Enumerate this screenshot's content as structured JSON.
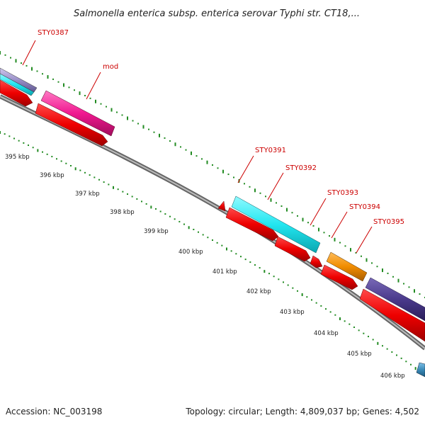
{
  "header": {
    "title": "Salmonella enterica subsp. enterica serovar Typhi str. CT18,..."
  },
  "footer": {
    "accession": "Accession: NC_003198",
    "summary": "Topology: circular; Length: 4,809,037 bp; Genes: 4,502"
  },
  "scale": {
    "tick_labels": [
      "395 kbp",
      "396 kbp",
      "397 kbp",
      "398 kbp",
      "399 kbp",
      "400 kbp",
      "401 kbp",
      "402 kbp",
      "403 kbp",
      "404 kbp",
      "405 kbp",
      "406 kbp"
    ]
  },
  "gene_labels": [
    "STY0387",
    "mod",
    "STY0391",
    "STY0392",
    "STY0393",
    "STY0394",
    "STY0395"
  ],
  "colors": {
    "label_red": "#cc0000",
    "strand_red": "#ee0000",
    "cyan": "#22e6f0",
    "magenta": "#f01890",
    "orange": "#f08c00",
    "purple": "#4a3a8c",
    "lavender": "#9a90c8",
    "teal_blue": "#3a8ab8",
    "backbone_gray": "#888888",
    "tick_green": "#228b22"
  }
}
